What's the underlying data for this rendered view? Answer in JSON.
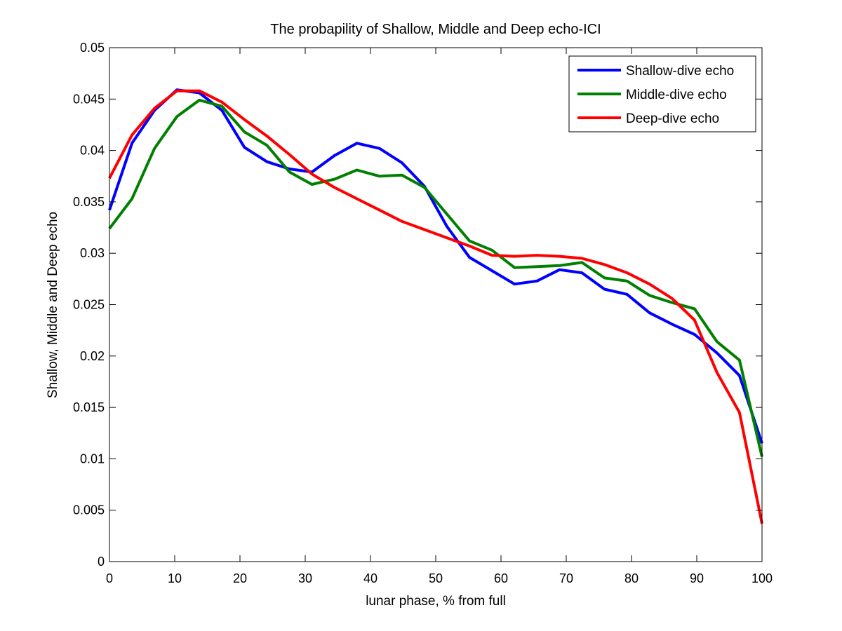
{
  "chart_data": {
    "type": "line",
    "title": "The probapility of Shallow, Middle and Deep echo-ICI",
    "xlabel": "lunar phase, % from full",
    "ylabel": "Shallow, Middle and Deep echo",
    "xlim": [
      0,
      100
    ],
    "ylim": [
      0,
      0.05
    ],
    "grid": false,
    "legend_position": "top-right",
    "x_ticks": [
      "0",
      "10",
      "20",
      "30",
      "40",
      "50",
      "60",
      "70",
      "80",
      "90",
      "100"
    ],
    "x_tick_values": [
      0,
      10,
      20,
      30,
      40,
      50,
      60,
      70,
      80,
      90,
      100
    ],
    "y_ticks": [
      "0",
      "0.005",
      "0.01",
      "0.015",
      "0.02",
      "0.025",
      "0.03",
      "0.035",
      "0.04",
      "0.045",
      "0.05"
    ],
    "y_tick_values": [
      0,
      0.005,
      0.01,
      0.015,
      0.02,
      0.025,
      0.03,
      0.035,
      0.04,
      0.045,
      0.05
    ],
    "x": [
      0,
      3.45,
      6.9,
      10.34,
      13.79,
      17.24,
      20.69,
      24.14,
      27.59,
      31.03,
      34.48,
      37.93,
      41.38,
      44.83,
      48.28,
      51.72,
      55.17,
      58.62,
      62.07,
      65.52,
      68.97,
      72.41,
      75.86,
      79.31,
      82.76,
      86.21,
      89.66,
      93.1,
      96.55,
      100
    ],
    "series": [
      {
        "name": "Shallow-dive echo",
        "color": "#0000ff",
        "values": [
          0.0342,
          0.0407,
          0.0439,
          0.0459,
          0.0456,
          0.0439,
          0.0403,
          0.0389,
          0.0382,
          0.0379,
          0.0395,
          0.0407,
          0.0402,
          0.0388,
          0.0365,
          0.0326,
          0.0296,
          0.0283,
          0.027,
          0.0273,
          0.0284,
          0.0281,
          0.0265,
          0.026,
          0.0242,
          0.0231,
          0.0221,
          0.0203,
          0.0181,
          0.0115
        ]
      },
      {
        "name": "Middle-dive echo",
        "color": "#008000",
        "values": [
          0.0324,
          0.0353,
          0.0402,
          0.0433,
          0.0449,
          0.0443,
          0.0418,
          0.0405,
          0.0379,
          0.0367,
          0.0372,
          0.0381,
          0.0375,
          0.0376,
          0.0364,
          0.0338,
          0.0312,
          0.0303,
          0.0286,
          0.0287,
          0.0288,
          0.0291,
          0.0276,
          0.0273,
          0.0259,
          0.0252,
          0.0246,
          0.0214,
          0.0196,
          0.0102
        ]
      },
      {
        "name": "Deep-dive echo",
        "color": "#ff0000",
        "values": [
          0.0373,
          0.0415,
          0.0441,
          0.0458,
          0.0458,
          0.0447,
          0.043,
          0.0414,
          0.0396,
          0.0377,
          0.0364,
          0.0353,
          0.0342,
          0.0331,
          0.0323,
          0.0315,
          0.0307,
          0.0298,
          0.0297,
          0.0298,
          0.0297,
          0.0295,
          0.0289,
          0.0281,
          0.027,
          0.0256,
          0.0235,
          0.0184,
          0.0145,
          0.0037
        ]
      }
    ]
  }
}
